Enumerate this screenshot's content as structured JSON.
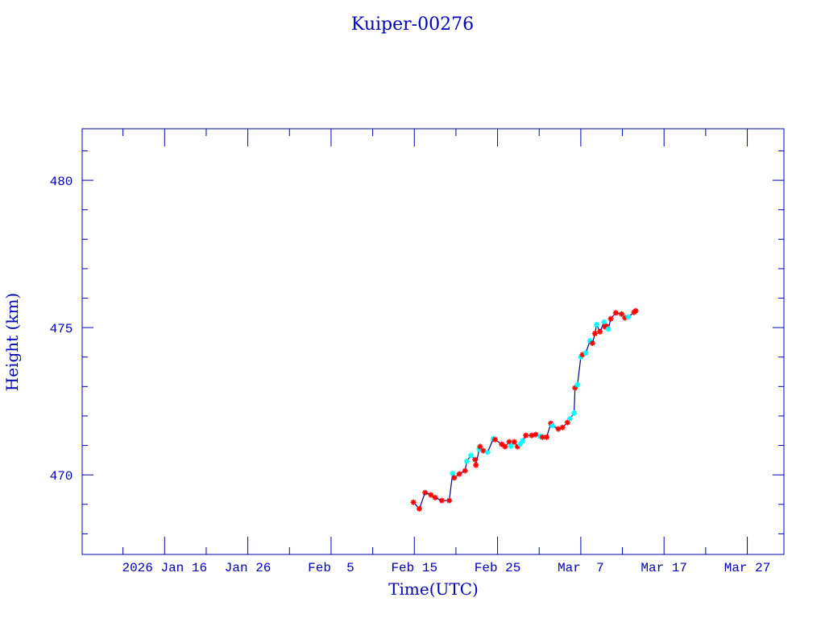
{
  "chart_data": {
    "type": "line",
    "title": "Kuiper-00276",
    "xlabel": "Time(UTC)",
    "ylabel": "Height (km)",
    "x_unit": "days since 2026 Feb 15 00:00 UTC",
    "xlim": [
      -39.9,
      44.4
    ],
    "ylim": [
      467.3,
      481.75
    ],
    "grid": false,
    "x_ticks": [
      {
        "value": -30,
        "label": "2026 Jan 16"
      },
      {
        "value": -20,
        "label": "Jan 26"
      },
      {
        "value": -10,
        "label": "Feb  5"
      },
      {
        "value": 0,
        "label": "Feb 15"
      },
      {
        "value": 10,
        "label": "Feb 25"
      },
      {
        "value": 20,
        "label": "Mar  7"
      },
      {
        "value": 30,
        "label": "Mar 17"
      },
      {
        "value": 40,
        "label": "Mar 27"
      }
    ],
    "x_minor_step": 5,
    "y_ticks": [
      {
        "value": 470,
        "label": "470"
      },
      {
        "value": 475,
        "label": "475"
      },
      {
        "value": 480,
        "label": "480"
      }
    ],
    "y_minor_step": 1,
    "colors": {
      "axes": "#0000b4",
      "line": "#00008b",
      "red": "#ff0000",
      "cyan": "#00ffff"
    },
    "series": [
      {
        "name": "height",
        "points": [
          [
            -0.1,
            469.07,
            "red"
          ],
          [
            0.6,
            468.85,
            "red"
          ],
          [
            1.3,
            469.4,
            "red"
          ],
          [
            2.0,
            469.32,
            "red"
          ],
          [
            2.5,
            469.23,
            "red"
          ],
          [
            3.3,
            469.13,
            "red"
          ],
          [
            4.2,
            469.13,
            "red"
          ],
          [
            4.6,
            470.05,
            "cyan"
          ],
          [
            4.8,
            469.9,
            "red"
          ],
          [
            5.4,
            470.03,
            "red"
          ],
          [
            6.1,
            470.14,
            "red"
          ],
          [
            6.3,
            470.46,
            "cyan"
          ],
          [
            6.8,
            470.66,
            "cyan"
          ],
          [
            7.3,
            470.52,
            "red"
          ],
          [
            7.4,
            470.33,
            "red"
          ],
          [
            7.8,
            470.87,
            "cyan"
          ],
          [
            7.9,
            470.96,
            "red"
          ],
          [
            8.3,
            470.82,
            "red"
          ],
          [
            8.8,
            470.77,
            "cyan"
          ],
          [
            9.5,
            471.23,
            "cyan"
          ],
          [
            9.7,
            471.2,
            "red"
          ],
          [
            10.5,
            471.04,
            "red"
          ],
          [
            10.9,
            470.96,
            "red"
          ],
          [
            11.4,
            471.12,
            "red"
          ],
          [
            11.6,
            470.98,
            "cyan"
          ],
          [
            12.0,
            471.12,
            "red"
          ],
          [
            12.4,
            470.96,
            "red"
          ],
          [
            12.7,
            471.04,
            "cyan"
          ],
          [
            13.0,
            471.15,
            "cyan"
          ],
          [
            13.4,
            471.34,
            "red"
          ],
          [
            14.1,
            471.34,
            "red"
          ],
          [
            14.6,
            471.37,
            "red"
          ],
          [
            15.1,
            471.31,
            "cyan"
          ],
          [
            15.4,
            471.28,
            "red"
          ],
          [
            15.9,
            471.28,
            "red"
          ],
          [
            16.4,
            471.75,
            "red"
          ],
          [
            16.6,
            471.67,
            "cyan"
          ],
          [
            17.3,
            471.56,
            "red"
          ],
          [
            17.8,
            471.61,
            "red"
          ],
          [
            18.4,
            471.78,
            "red"
          ],
          [
            18.7,
            471.91,
            "cyan"
          ],
          [
            19.2,
            472.1,
            "cyan"
          ],
          [
            19.3,
            472.95,
            "red"
          ],
          [
            19.6,
            473.06,
            "cyan"
          ],
          [
            20.0,
            474.0,
            "cyan"
          ],
          [
            20.2,
            474.08,
            "red"
          ],
          [
            20.6,
            474.14,
            "cyan"
          ],
          [
            21.1,
            474.55,
            "cyan"
          ],
          [
            21.4,
            474.47,
            "red"
          ],
          [
            21.7,
            474.8,
            "red"
          ],
          [
            21.9,
            475.1,
            "cyan"
          ],
          [
            22.3,
            474.86,
            "red"
          ],
          [
            22.8,
            475.19,
            "cyan"
          ],
          [
            22.9,
            475.03,
            "red"
          ],
          [
            23.1,
            475.05,
            "red"
          ],
          [
            23.3,
            474.95,
            "cyan"
          ],
          [
            23.6,
            475.3,
            "red"
          ],
          [
            24.2,
            475.5,
            "red"
          ],
          [
            24.9,
            475.46,
            "red"
          ],
          [
            25.3,
            475.33,
            "red"
          ],
          [
            25.7,
            475.36,
            "cyan"
          ],
          [
            26.4,
            475.52,
            "red"
          ],
          [
            26.6,
            475.57,
            "red"
          ]
        ]
      }
    ]
  }
}
